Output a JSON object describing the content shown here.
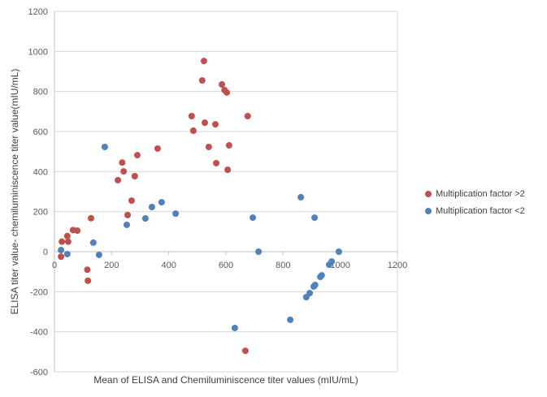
{
  "chart_data": {
    "type": "scatter",
    "title": "",
    "xlabel": "Mean of ELISA and Chemiluminiscence titer values (mIU/mL)",
    "ylabel": "ELISA titer value- chemiluminiscence titer value(mIU/mL)",
    "xlim": [
      0,
      1200
    ],
    "ylim": [
      -600,
      1200
    ],
    "xticks": [
      0,
      200,
      400,
      600,
      800,
      1000,
      1200
    ],
    "yticks": [
      -600,
      -400,
      -200,
      0,
      200,
      400,
      600,
      800,
      1000,
      1200
    ],
    "grid": "horizontal",
    "legend_position": "right",
    "series": [
      {
        "name": "Multiplication factor >2",
        "color": "#C0504D",
        "points": [
          [
            23,
            -25
          ],
          [
            26,
            50
          ],
          [
            48,
            50
          ],
          [
            45,
            78
          ],
          [
            65,
            108
          ],
          [
            80,
            105
          ],
          [
            115,
            -90
          ],
          [
            117,
            -145
          ],
          [
            128,
            167
          ],
          [
            222,
            357
          ],
          [
            237,
            445
          ],
          [
            242,
            401
          ],
          [
            256,
            183
          ],
          [
            270,
            255
          ],
          [
            281,
            377
          ],
          [
            290,
            482
          ],
          [
            361,
            515
          ],
          [
            480,
            677
          ],
          [
            486,
            604
          ],
          [
            517,
            855
          ],
          [
            523,
            952
          ],
          [
            526,
            644
          ],
          [
            540,
            523
          ],
          [
            563,
            636
          ],
          [
            566,
            442
          ],
          [
            586,
            835
          ],
          [
            595,
            807
          ],
          [
            603,
            795
          ],
          [
            606,
            409
          ],
          [
            611,
            531
          ],
          [
            676,
            677
          ],
          [
            668,
            -495
          ]
        ]
      },
      {
        "name": "Multiplication factor <2",
        "color": "#4F81BD",
        "points": [
          [
            23,
            8
          ],
          [
            45,
            -12
          ],
          [
            136,
            45
          ],
          [
            156,
            -16
          ],
          [
            176,
            523
          ],
          [
            253,
            134
          ],
          [
            318,
            166
          ],
          [
            341,
            223
          ],
          [
            375,
            247
          ],
          [
            424,
            190
          ],
          [
            631,
            -381
          ],
          [
            694,
            170
          ],
          [
            714,
            0
          ],
          [
            825,
            -340
          ],
          [
            862,
            272
          ],
          [
            910,
            170
          ],
          [
            881,
            -227
          ],
          [
            893,
            -207
          ],
          [
            907,
            -174
          ],
          [
            912,
            -166
          ],
          [
            930,
            -126
          ],
          [
            935,
            -118
          ],
          [
            961,
            -65
          ],
          [
            970,
            -49
          ],
          [
            995,
            0
          ]
        ]
      }
    ]
  }
}
